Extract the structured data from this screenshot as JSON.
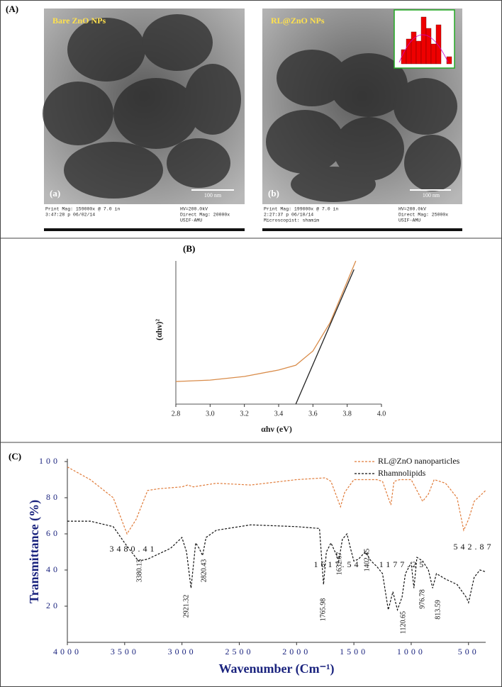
{
  "panel_a": {
    "label": "(A)",
    "images": [
      {
        "title": "Bare ZnO NPs",
        "tag": "(a)",
        "scale": "100 nm",
        "left": [
          "Print Mag: 159000x @ 7.0 in",
          "3:47:28 p 06/02/14"
        ],
        "right": [
          "HV=200.0kV",
          "Direct Mag: 20000x",
          "USIF-AMU"
        ]
      },
      {
        "title": "RL@ZnO NPs",
        "tag": "(b)",
        "scale": "100 nm",
        "left": [
          "Print Mag: 199000x @ 7.0 in",
          "2:27:37 p 06/10/14",
          "Microscopist: shamim"
        ],
        "right": [
          "HV=200.0kV",
          "Direct Mag: 25000x",
          "USIF-AMU"
        ]
      }
    ]
  },
  "chart_data": [
    {
      "type": "line",
      "label": "(B)",
      "xlabel": "αhν (eV)",
      "ylabel": "(αhν)²",
      "xlim": [
        2.8,
        4.0
      ],
      "ylim": [
        0,
        10
      ],
      "xticks": [
        2.8,
        {
          "value": 3,
          "label": "3.0"
        },
        3.2,
        3.4,
        3.6,
        3.8,
        {
          "value": 4,
          "label": "4.0"
        }
      ],
      "series": [
        {
          "color": "#d98c4a",
          "x": [
            2.8,
            3.0,
            3.2,
            3.4,
            3.5,
            3.6,
            3.7,
            3.8,
            3.85
          ],
          "values": [
            1.58,
            1.68,
            1.93,
            2.38,
            2.72,
            3.71,
            5.69,
            8.56,
            10
          ]
        },
        {
          "color": "#222222",
          "x": [
            3.5,
            3.84
          ],
          "values": [
            0,
            9.4
          ]
        }
      ]
    },
    {
      "type": "line",
      "label": "(C)",
      "xlabel": "Wavenumber (Cm⁻¹)",
      "ylabel": "Transmittance (%)",
      "xlim": [
        4000,
        350
      ],
      "ylim": [
        0,
        100
      ],
      "line_style": "dashed",
      "xticks": [
        4000,
        3500,
        3000,
        2500,
        2000,
        1500,
        1000,
        500
      ],
      "yticks": [
        20,
        40,
        60,
        80,
        100
      ],
      "series": [
        {
          "name": "RL@ZnO nanoparticles",
          "color": "#e07b39",
          "x": [
            4000,
            3800,
            3600,
            3480,
            3400,
            3300,
            3200,
            3000,
            2950,
            2900,
            2700,
            2400,
            2000,
            1750,
            1700,
            1617,
            1580,
            1500,
            1300,
            1250,
            1200,
            1177,
            1150,
            1100,
            1000,
            900,
            850,
            800,
            700,
            600,
            542,
            500,
            450,
            350
          ],
          "values": [
            97,
            90,
            80,
            60,
            68,
            84,
            85,
            86,
            87,
            86,
            88,
            87,
            90,
            91,
            89,
            75,
            83,
            90,
            90,
            89,
            80,
            76,
            89,
            90,
            90,
            78,
            82,
            90,
            88,
            80,
            62,
            68,
            78,
            84
          ]
        },
        {
          "name": "Rhamnolipids",
          "color": "#111111",
          "x": [
            4000,
            3800,
            3600,
            3500,
            3380,
            3300,
            3100,
            3000,
            2960,
            2921,
            2880,
            2850,
            2820,
            2790,
            2700,
            2400,
            2000,
            1800,
            1765,
            1740,
            1700,
            1650,
            1632,
            1600,
            1560,
            1530,
            1500,
            1460,
            1402,
            1350,
            1300,
            1250,
            1200,
            1160,
            1120,
            1080,
            1050,
            1000,
            976,
            950,
            900,
            850,
            813,
            780,
            700,
            600,
            520,
            500,
            450,
            400,
            350
          ],
          "values": [
            67,
            67,
            64,
            55,
            45,
            46,
            52,
            58,
            50,
            30,
            55,
            52,
            48,
            58,
            62,
            65,
            64,
            63,
            32,
            50,
            55,
            48,
            45,
            57,
            60,
            52,
            45,
            46,
            50,
            45,
            42,
            38,
            18,
            28,
            18,
            25,
            38,
            44,
            30,
            47,
            45,
            40,
            30,
            38,
            35,
            32,
            25,
            22,
            36,
            40,
            39
          ]
        }
      ],
      "annotations": [
        "3480.41",
        "1617.54",
        "1177.25",
        "542.87",
        "3380.13",
        "2921.32",
        "2820.43",
        "1765.98",
        "1632.67",
        "1402.45",
        "1120.65",
        "976.78",
        "813.59"
      ]
    }
  ]
}
